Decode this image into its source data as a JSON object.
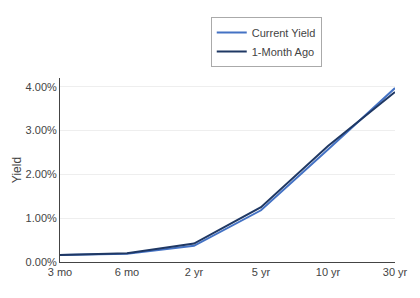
{
  "chart_data": {
    "type": "line",
    "categories": [
      "3 mo",
      "6 mo",
      "2 yr",
      "5 yr",
      "10 yr",
      "30 yr"
    ],
    "series": [
      {
        "name": "Current Yield",
        "color": "#4472C4",
        "values": [
          0.0016,
          0.0019,
          0.0037,
          0.0118,
          0.0257,
          0.0397
        ]
      },
      {
        "name": "1-Month Ago",
        "color": "#1F3864",
        "values": [
          0.0016,
          0.002,
          0.0042,
          0.0125,
          0.0265,
          0.0388
        ]
      }
    ],
    "y_label": "Yield",
    "ylim": [
      0.0,
      0.042
    ],
    "yticks": [
      {
        "value": 0.0,
        "label": "0.00%"
      },
      {
        "value": 0.01,
        "label": "1.00%"
      },
      {
        "value": 0.02,
        "label": "2.00%"
      },
      {
        "value": 0.03,
        "label": "3.00%"
      },
      {
        "value": 0.04,
        "label": "4.00%"
      }
    ],
    "grid": true,
    "legend": "top"
  }
}
